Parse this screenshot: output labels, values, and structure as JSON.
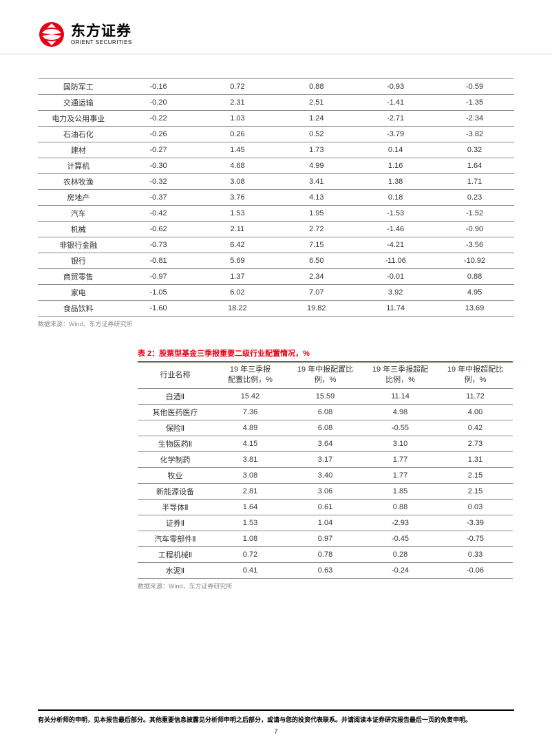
{
  "logo": {
    "cn": "东方证券",
    "en": "ORIENT SECURITIES",
    "icon_color": "#e60012"
  },
  "table1": {
    "rows": [
      [
        "国防军工",
        "-0.16",
        "0.72",
        "0.88",
        "-0.93",
        "-0.59"
      ],
      [
        "交通运输",
        "-0.20",
        "2.31",
        "2.51",
        "-1.41",
        "-1.35"
      ],
      [
        "电力及公用事业",
        "-0.22",
        "1.03",
        "1.24",
        "-2.71",
        "-2.34"
      ],
      [
        "石油石化",
        "-0.26",
        "0.26",
        "0.52",
        "-3.79",
        "-3.82"
      ],
      [
        "建材",
        "-0.27",
        "1.45",
        "1.73",
        "0.14",
        "0.32"
      ],
      [
        "计算机",
        "-0.30",
        "4.68",
        "4.99",
        "1.16",
        "1.64"
      ],
      [
        "农林牧渔",
        "-0.32",
        "3.08",
        "3.41",
        "1.38",
        "1.71"
      ],
      [
        "房地产",
        "-0.37",
        "3.76",
        "4.13",
        "0.18",
        "0.23"
      ],
      [
        "汽车",
        "-0.42",
        "1.53",
        "1.95",
        "-1.53",
        "-1.52"
      ],
      [
        "机械",
        "-0.62",
        "2.11",
        "2.72",
        "-1.46",
        "-0.90"
      ],
      [
        "非银行金融",
        "-0.73",
        "6.42",
        "7.15",
        "-4.21",
        "-3.56"
      ],
      [
        "银行",
        "-0.81",
        "5.69",
        "6.50",
        "-11.06",
        "-10.92"
      ],
      [
        "商贸零售",
        "-0.97",
        "1.37",
        "2.34",
        "-0.01",
        "0.88"
      ],
      [
        "家电",
        "-1.05",
        "6.02",
        "7.07",
        "3.92",
        "4.95"
      ],
      [
        "食品饮料",
        "-1.60",
        "18.22",
        "19.82",
        "11.74",
        "13.69"
      ]
    ],
    "source": "数据来源：Wind，东方证券研究所"
  },
  "table2": {
    "title": "表 2：股票型基金三季报重要二级行业配置情况，%",
    "headers": [
      "行业名称",
      "19 年三季报\n配置比例，%",
      "19 年中报配置比\n例，%",
      "19 年三季报超配\n比例，%",
      "19 年中报超配比\n例，%"
    ],
    "rows": [
      [
        "白酒Ⅱ",
        "15.42",
        "15.59",
        "11.14",
        "11.72"
      ],
      [
        "其他医药医疗",
        "7.36",
        "6.08",
        "4.98",
        "4.00"
      ],
      [
        "保险Ⅱ",
        "4.89",
        "6.08",
        "-0.55",
        "0.42"
      ],
      [
        "生物医药Ⅱ",
        "4.15",
        "3.64",
        "3.10",
        "2.73"
      ],
      [
        "化学制药",
        "3.81",
        "3.17",
        "1.77",
        "1.31"
      ],
      [
        "牧业",
        "3.08",
        "3.40",
        "1.77",
        "2.15"
      ],
      [
        "新能源设备",
        "2.81",
        "3.06",
        "1.85",
        "2.15"
      ],
      [
        "半导体Ⅱ",
        "1.64",
        "0.61",
        "0.88",
        "0.03"
      ],
      [
        "证券Ⅱ",
        "1.53",
        "1.04",
        "-2.93",
        "-3.39"
      ],
      [
        "汽车零部件Ⅱ",
        "1.08",
        "0.97",
        "-0.45",
        "-0.75"
      ],
      [
        "工程机械Ⅱ",
        "0.72",
        "0.78",
        "0.28",
        "0.33"
      ],
      [
        "水泥Ⅱ",
        "0.41",
        "0.63",
        "-0.24",
        "-0.06"
      ]
    ],
    "source": "数据来源：Wind，东方证券研究所"
  },
  "footer": {
    "text": "有关分析师的申明，见本报告最后部分。其他重要信息披露见分析师申明之后部分，或请与您的投资代表联系。并请阅读本证券研究报告最后一页的免责申明。",
    "page": "7"
  }
}
